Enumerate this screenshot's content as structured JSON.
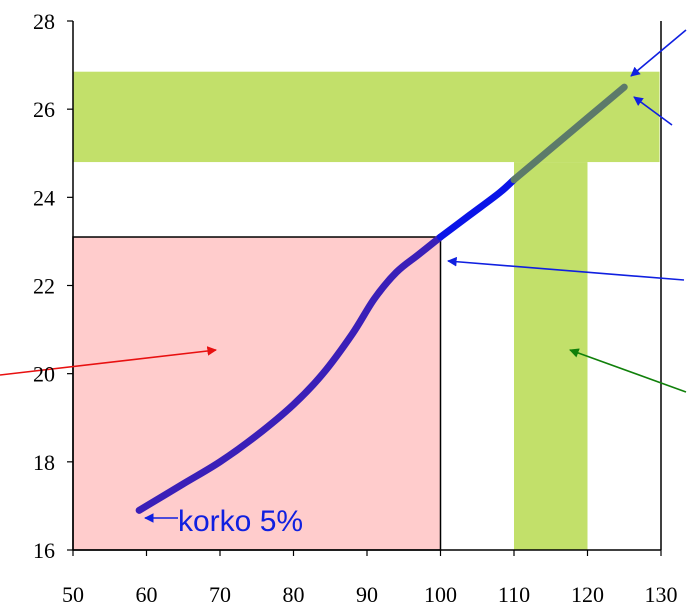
{
  "chart_data": {
    "type": "line",
    "xlim": [
      50,
      130
    ],
    "ylim": [
      16,
      28
    ],
    "x_ticks": [
      "50",
      "60",
      "70",
      "80",
      "90",
      "100",
      "110",
      "120",
      "130"
    ],
    "y_ticks": [
      "16",
      "18",
      "20",
      "22",
      "24",
      "26",
      "28"
    ],
    "grid": false,
    "series": [
      {
        "color": "#3a1fb8",
        "points": [
          [
            59,
            16.9
          ],
          [
            65,
            17.5
          ],
          [
            70,
            18.0
          ],
          [
            75,
            18.6
          ],
          [
            80,
            19.3
          ],
          [
            84,
            20.0
          ],
          [
            88,
            20.9
          ],
          [
            91,
            21.7
          ],
          [
            94,
            22.3
          ],
          [
            97,
            22.7
          ],
          [
            100,
            23.1
          ]
        ]
      },
      {
        "color": "#0a14e8",
        "points": [
          [
            100,
            23.1
          ],
          [
            104,
            23.6
          ],
          [
            108,
            24.1
          ],
          [
            110,
            24.4
          ]
        ]
      },
      {
        "color": "#5c7a6a",
        "points": [
          [
            110,
            24.4
          ],
          [
            115,
            25.1
          ],
          [
            120,
            25.8
          ],
          [
            125,
            26.5
          ]
        ]
      }
    ],
    "regions": [
      {
        "name": "pink-rect",
        "color": "#ffcccc",
        "stroke": "#000000",
        "x": [
          50,
          100
        ],
        "y": [
          16,
          23.1
        ]
      },
      {
        "name": "green-horizontal-band",
        "color": "#c2e06a",
        "x": [
          50,
          129.8
        ],
        "y": [
          24.8,
          26.85
        ]
      },
      {
        "name": "green-vertical-band",
        "color": "#c2e06a",
        "x": [
          110,
          120
        ],
        "y": [
          16,
          24.8
        ]
      }
    ],
    "annotations": [
      {
        "text": "korko 5%",
        "color": "#1020e0"
      }
    ]
  }
}
